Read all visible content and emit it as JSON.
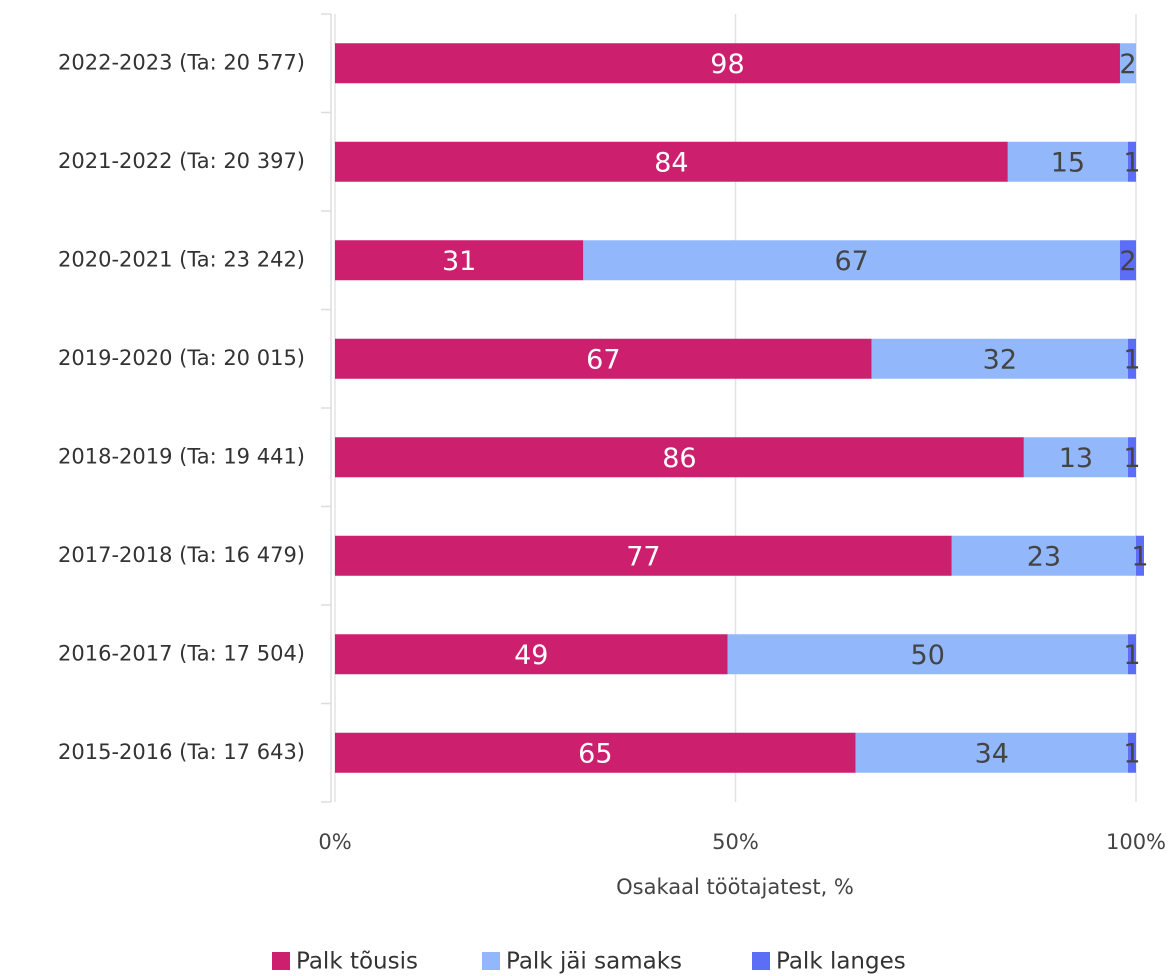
{
  "chart_data": {
    "type": "stacked_barh",
    "categories": [
      "2022-2023 (Ta: 20 577)",
      "2021-2022 (Ta: 20 397)",
      "2020-2021  (Ta: 23 242)",
      "2019-2020 (Ta: 20 015)",
      "2018-2019 (Ta: 19 441)",
      "2017-2018 (Ta: 16 479)",
      "2016-2017 (Ta: 17 504)",
      "2015-2016 (Ta: 17 643)"
    ],
    "series": [
      {
        "name": "Palk tõusis",
        "color": "#cc1f6e",
        "values": [
          98,
          84,
          31,
          67,
          86,
          77,
          49,
          65
        ]
      },
      {
        "name": "Palk jäi samaks",
        "color": "#92b8fb",
        "values": [
          2,
          15,
          67,
          32,
          13,
          23,
          50,
          34
        ]
      },
      {
        "name": "Palk langes",
        "color": "#5b6ef5",
        "values": [
          null,
          1,
          2,
          1,
          1,
          1,
          1,
          1
        ]
      }
    ],
    "xlabel": "Osakaal töötajatest, %",
    "xlim": [
      0,
      100
    ],
    "xticks": [
      {
        "value": 0,
        "label": "0%"
      },
      {
        "value": 50,
        "label": "50%"
      },
      {
        "value": 100,
        "label": "100%"
      }
    ],
    "grid": true
  }
}
